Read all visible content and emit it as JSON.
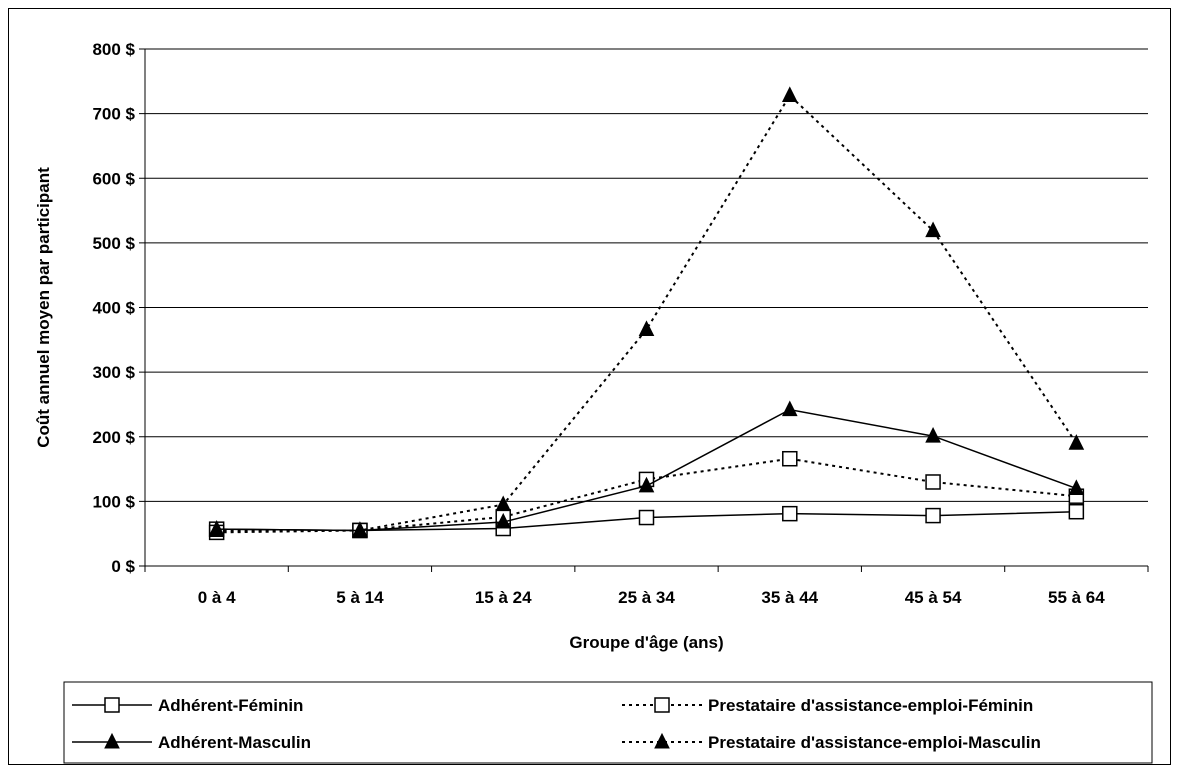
{
  "chart_data": {
    "type": "line",
    "title": "",
    "xlabel": "Groupe d'âge (ans)",
    "ylabel": "Coût annuel moyen par participant",
    "categories": [
      "0 à 4",
      "5 à 14",
      "15 à 24",
      "25 à 34",
      "35 à 44",
      "45 à 54",
      "55 à 64"
    ],
    "ylim": [
      0,
      800
    ],
    "yticks": [
      0,
      100,
      200,
      300,
      400,
      500,
      600,
      700,
      800
    ],
    "ytick_labels": [
      "0 $",
      "100 $",
      "200 $",
      "300 $",
      "400 $",
      "500 $",
      "600 $",
      "700 $",
      "800 $"
    ],
    "grid": true,
    "legend_position": "bottom",
    "series": [
      {
        "name": "Adhérent-Féminin",
        "values": [
          57,
          55,
          58,
          75,
          81,
          78,
          84
        ],
        "line_style": "solid",
        "marker": "open-square",
        "color": "#000000"
      },
      {
        "name": "Prestataire d'assistance-emploi-Féminin",
        "values": [
          52,
          55,
          76,
          134,
          166,
          130,
          108
        ],
        "line_style": "dotted",
        "marker": "open-square",
        "color": "#000000"
      },
      {
        "name": "Adhérent-Masculin",
        "values": [
          57,
          55,
          68,
          124,
          242,
          201,
          120
        ],
        "line_style": "solid",
        "marker": "filled-triangle",
        "color": "#000000"
      },
      {
        "name": "Prestataire d'assistance-emploi-Masculin",
        "values": [
          55,
          55,
          95,
          366,
          728,
          519,
          190
        ],
        "line_style": "dotted",
        "marker": "filled-triangle",
        "color": "#000000"
      }
    ]
  }
}
